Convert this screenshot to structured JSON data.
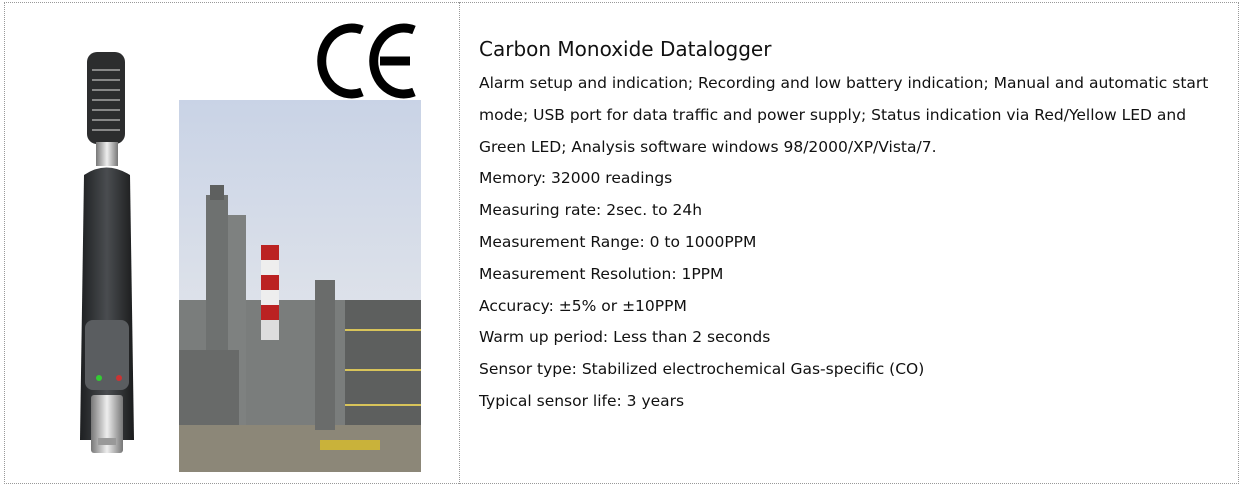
{
  "product": {
    "title": "Carbon Monoxide Datalogger",
    "description": "Alarm setup and indication; Recording and low battery indication; Manual and automatic start mode; USB port for data traffic and power supply; Status indication via Red/Yellow LED and Green LED; Analysis software windows 98/2000/XP/Vista/7.",
    "specs": [
      "Memory: 32000 readings",
      "Measuring rate: 2sec. to 24h",
      "Measurement Range: 0 to 1000PPM",
      "Measurement Resolution: 1PPM",
      "Accuracy: ±5% or ±10PPM",
      "Warm up period: Less than 2 seconds",
      "Sensor type: Stabilized electrochemical Gas-specific (CO)",
      "Typical sensor life: 3 years"
    ]
  }
}
